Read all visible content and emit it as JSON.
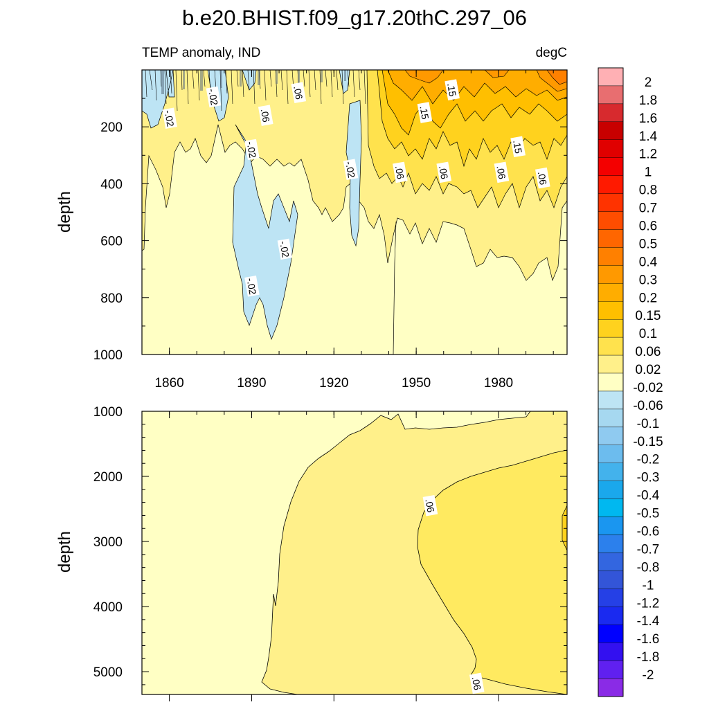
{
  "chart_data": [
    {
      "type": "contour",
      "panel": "upper",
      "title": "b.e20.BHIST.f09_g17.20thC.297_06",
      "left_subtitle": "TEMP anomaly, IND",
      "right_subtitle": "degC",
      "xlabel": "",
      "ylabel": "depth",
      "xlim": [
        1850,
        2005
      ],
      "ylim": [
        1000,
        0
      ],
      "x_ticks": [
        1860,
        1890,
        1920,
        1950,
        1980
      ],
      "x_tick_labels": [
        "1860",
        "1890",
        "1920",
        "1950",
        "1980"
      ],
      "y_ticks": [
        200,
        400,
        600,
        800,
        1000
      ],
      "y_tick_labels": [
        "200",
        "400",
        "600",
        "800",
        "1000"
      ],
      "contour_labels": [
        {
          "text": "-.02",
          "x": 1860,
          "depth": 170
        },
        {
          "text": "-.02",
          "x": 1876,
          "depth": 95
        },
        {
          "text": ".06",
          "x": 1895,
          "depth": 160
        },
        {
          "text": ".06",
          "x": 1907,
          "depth": 80
        },
        {
          "text": "-.02",
          "x": 1890,
          "depth": 280
        },
        {
          "text": "-.02",
          "x": 1926,
          "depth": 350
        },
        {
          "text": ".15",
          "x": 1953,
          "depth": 150
        },
        {
          "text": ".15",
          "x": 1963,
          "depth": 70
        },
        {
          "text": ".15",
          "x": 1987,
          "depth": 270
        },
        {
          "text": ".06",
          "x": 1944,
          "depth": 360
        },
        {
          "text": ".06",
          "x": 1960,
          "depth": 360
        },
        {
          "text": ".06",
          "x": 1981,
          "depth": 360
        },
        {
          "text": "-.02",
          "x": 1902,
          "depth": 630
        },
        {
          "text": "-.02",
          "x": 1890,
          "depth": 760
        },
        {
          "text": ".06",
          "x": 1996,
          "depth": 380
        }
      ]
    },
    {
      "type": "contour",
      "panel": "lower",
      "xlim": [
        1850,
        2005
      ],
      "ylim": [
        5350,
        1000
      ],
      "ylabel": "depth",
      "y_ticks": [
        1000,
        2000,
        3000,
        4000,
        5000
      ],
      "y_tick_labels": [
        "1000",
        "2000",
        "3000",
        "4000",
        "5000"
      ],
      "contour_labels": [
        {
          "text": ".06",
          "x": 1955,
          "depth": 2450
        },
        {
          "text": ".06",
          "x": 1972,
          "depth": 5180
        }
      ]
    }
  ],
  "colorbar": {
    "levels": [
      "2",
      "1.8",
      "1.6",
      "1.4",
      "1.2",
      "1",
      "0.8",
      "0.7",
      "0.6",
      "0.5",
      "0.4",
      "0.3",
      "0.2",
      "0.15",
      "0.1",
      "0.06",
      "0.02",
      "-0.02",
      "-0.06",
      "-0.1",
      "-0.15",
      "-0.2",
      "-0.3",
      "-0.4",
      "-0.5",
      "-0.6",
      "-0.7",
      "-0.8",
      "-1",
      "-1.2",
      "-1.4",
      "-1.6",
      "-1.8",
      "-2"
    ],
    "colors": [
      "#ffb0b4",
      "#e86e70",
      "#d72a2e",
      "#c80000",
      "#e00000",
      "#f40000",
      "#ff1a00",
      "#ff3300",
      "#ff4d00",
      "#ff6600",
      "#ff8000",
      "#ff9900",
      "#ffad00",
      "#ffbf00",
      "#ffd21e",
      "#ffe24d",
      "#fff08a",
      "#ffffc4",
      "#bde4f4",
      "#a6d8f0",
      "#8fcaf0",
      "#6cbcee",
      "#43b2ec",
      "#1aa8ec",
      "#00b8f0",
      "#1a96f0",
      "#2c80ec",
      "#3366e0",
      "#3355d8",
      "#2540e6",
      "#1a2af0",
      "#0000ff",
      "#3310f0",
      "#6020f0",
      "#8a2be6"
    ]
  }
}
